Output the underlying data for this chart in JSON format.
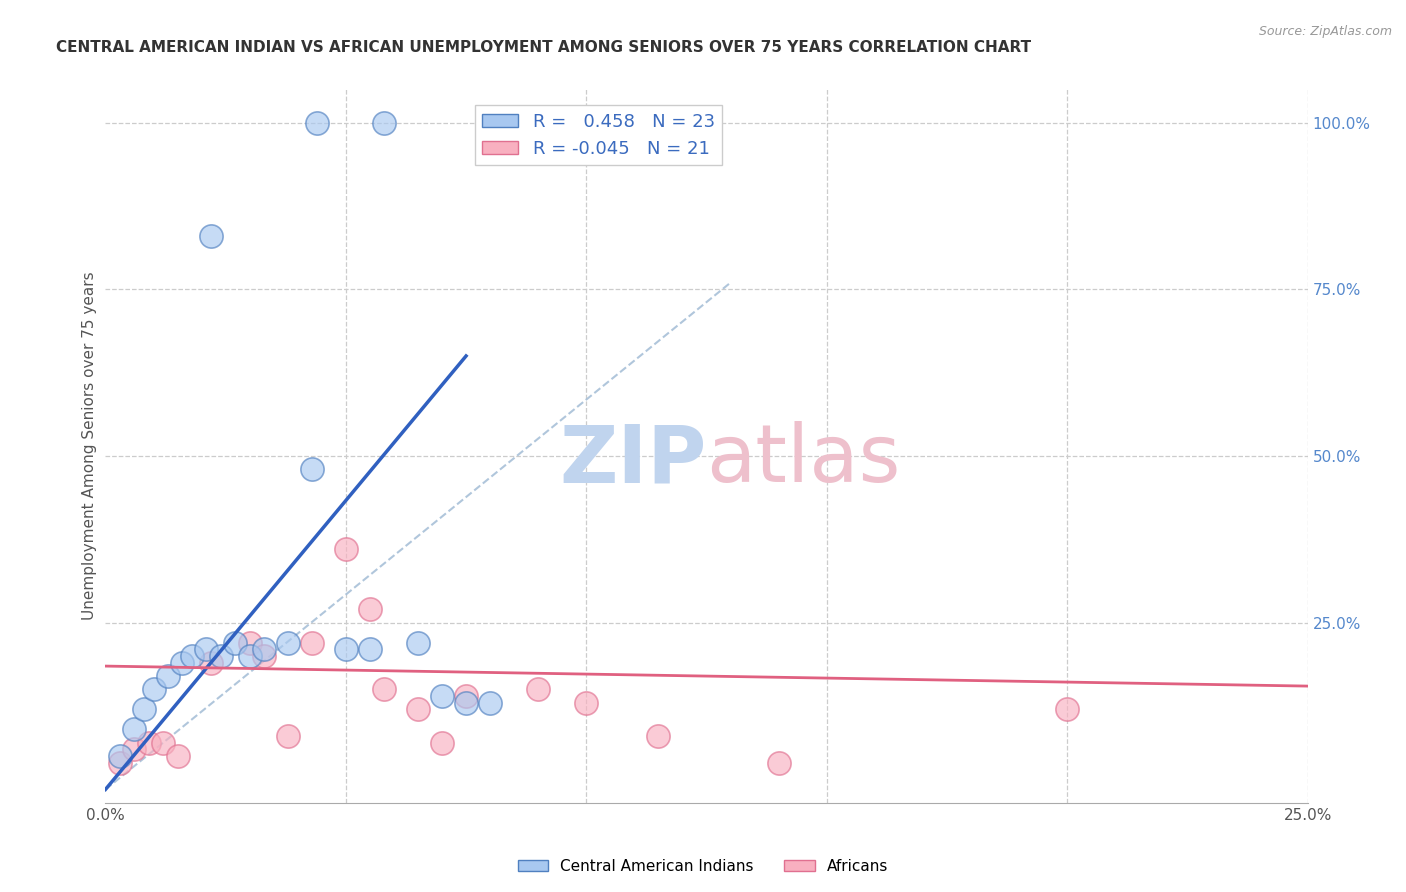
{
  "title": "CENTRAL AMERICAN INDIAN VS AFRICAN UNEMPLOYMENT AMONG SENIORS OVER 75 YEARS CORRELATION CHART",
  "source": "Source: ZipAtlas.com",
  "ylabel_left": "Unemployment Among Seniors over 75 years",
  "legend_label1": "Central American Indians",
  "legend_label2": "Africans",
  "R1": 0.458,
  "N1": 23,
  "R2": -0.045,
  "N2": 21,
  "xlim": [
    0.0,
    0.25
  ],
  "ylim": [
    -0.02,
    1.05
  ],
  "color_blue_fill": "#A8C8F0",
  "color_blue_edge": "#5080C0",
  "color_blue_line": "#3060C0",
  "color_pink_fill": "#F8B0C0",
  "color_pink_edge": "#E07090",
  "color_pink_line": "#E06080",
  "color_dashed": "#A8C0D8",
  "blue_scatter_x": [
    0.022,
    0.044,
    0.058,
    0.003,
    0.006,
    0.008,
    0.01,
    0.013,
    0.016,
    0.018,
    0.021,
    0.024,
    0.027,
    0.03,
    0.033,
    0.038,
    0.043,
    0.05,
    0.055,
    0.065,
    0.07,
    0.075,
    0.08
  ],
  "blue_scatter_y": [
    0.83,
    1.0,
    1.0,
    0.05,
    0.09,
    0.12,
    0.15,
    0.17,
    0.19,
    0.2,
    0.21,
    0.2,
    0.22,
    0.2,
    0.21,
    0.22,
    0.48,
    0.21,
    0.21,
    0.22,
    0.14,
    0.13,
    0.13
  ],
  "pink_scatter_x": [
    0.003,
    0.006,
    0.009,
    0.012,
    0.015,
    0.022,
    0.03,
    0.033,
    0.038,
    0.043,
    0.05,
    0.055,
    0.058,
    0.065,
    0.07,
    0.075,
    0.09,
    0.1,
    0.115,
    0.14,
    0.2
  ],
  "pink_scatter_y": [
    0.04,
    0.06,
    0.07,
    0.07,
    0.05,
    0.19,
    0.22,
    0.2,
    0.08,
    0.22,
    0.36,
    0.27,
    0.15,
    0.12,
    0.07,
    0.14,
    0.15,
    0.13,
    0.08,
    0.04,
    0.12
  ],
  "blue_line_x": [
    0.0,
    0.075
  ],
  "blue_line_y": [
    0.0,
    0.65
  ],
  "pink_line_x": [
    0.0,
    0.25
  ],
  "pink_line_y": [
    0.185,
    0.155
  ],
  "dash_line_x": [
    0.0,
    0.13
  ],
  "dash_line_y": [
    0.0,
    0.76
  ],
  "watermark_zip_color": "#C0D4EE",
  "watermark_atlas_color": "#EEC0CC"
}
